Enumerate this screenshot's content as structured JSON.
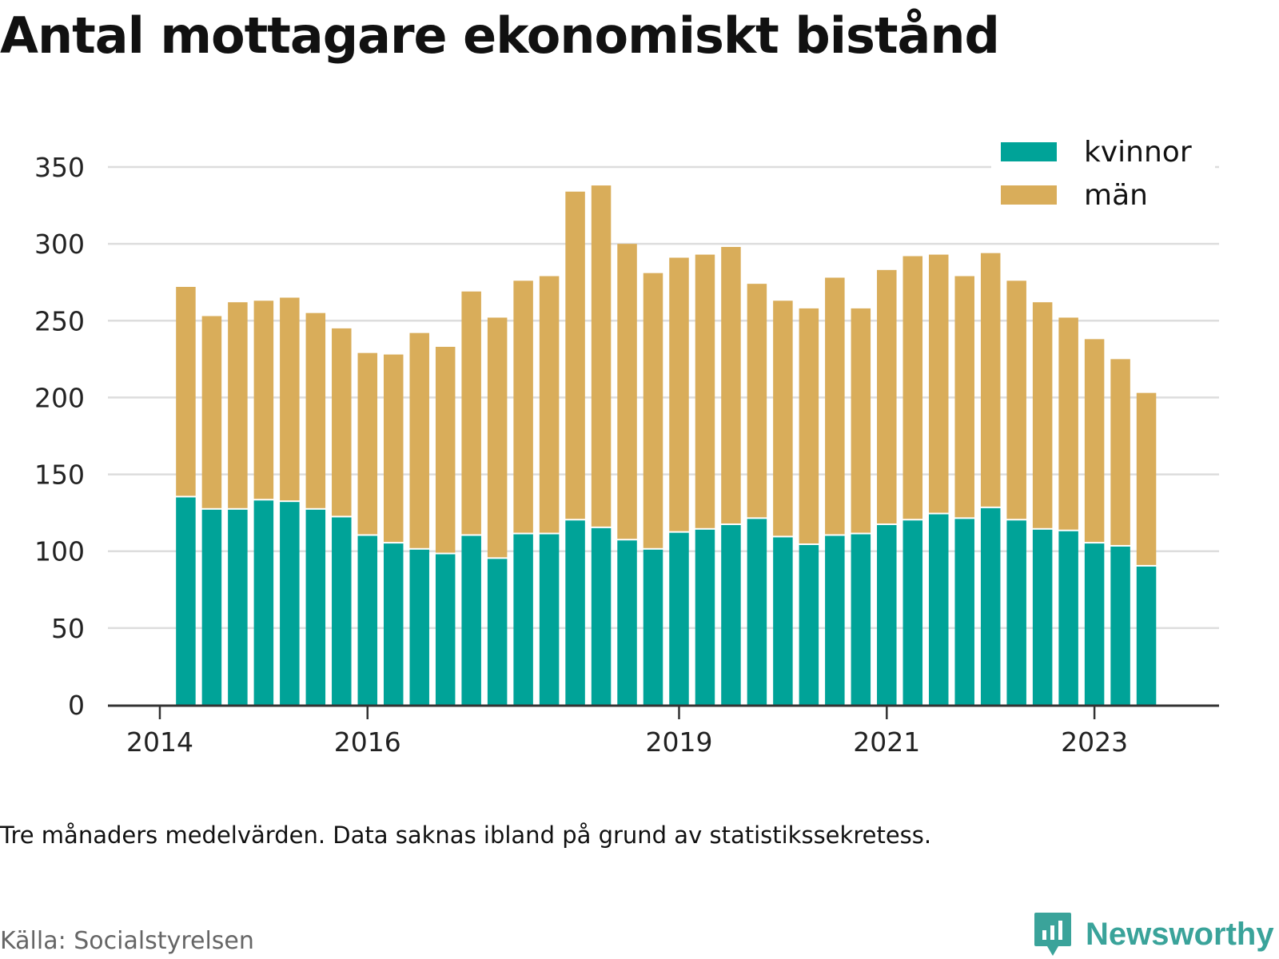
{
  "title": "Antal mottagare ekonomiskt bistånd",
  "note": "Tre månaders medelvärden. Data saknas ibland på grund av statistikssekretess.",
  "source": "Källa: Socialstyrelsen",
  "brand": {
    "name": "Newsworthy",
    "icon": "newsworthy-logo-icon",
    "color": "#3aa39a"
  },
  "chart_data": {
    "type": "bar",
    "stacked": true,
    "grid": true,
    "legend_position": "top-right",
    "ylim": [
      0,
      350
    ],
    "yticks": [
      0,
      50,
      100,
      150,
      200,
      250,
      300,
      350
    ],
    "xticks": [
      {
        "label": "2014",
        "at": 2014.0
      },
      {
        "label": "2016",
        "at": 2016.0
      },
      {
        "label": "2019",
        "at": 2019.0
      },
      {
        "label": "2021",
        "at": 2021.0
      },
      {
        "label": "2023",
        "at": 2023.0
      }
    ],
    "xlim": [
      2013.5,
      2024.2
    ],
    "x": [
      2014.25,
      2014.5,
      2014.75,
      2015.0,
      2015.25,
      2015.5,
      2015.75,
      2016.0,
      2016.25,
      2016.5,
      2016.75,
      2017.0,
      2017.25,
      2017.5,
      2017.75,
      2018.0,
      2018.25,
      2018.5,
      2018.75,
      2019.0,
      2019.25,
      2019.5,
      2019.75,
      2020.0,
      2020.25,
      2020.5,
      2020.75,
      2021.0,
      2021.25,
      2021.5,
      2021.75,
      2022.0,
      2022.25,
      2022.5,
      2022.75,
      2023.0,
      2023.25,
      2023.5
    ],
    "series": [
      {
        "name": "kvinnor",
        "color": "#00a398",
        "values": [
          135,
          127,
          127,
          133,
          132,
          127,
          122,
          110,
          105,
          101,
          98,
          110,
          95,
          111,
          111,
          120,
          115,
          107,
          101,
          112,
          114,
          117,
          121,
          109,
          104,
          110,
          111,
          117,
          120,
          124,
          121,
          128,
          120,
          114,
          113,
          105,
          103,
          90
        ]
      },
      {
        "name": "män",
        "color": "#d9ad5a",
        "values": [
          137,
          126,
          135,
          130,
          133,
          128,
          123,
          119,
          123,
          141,
          135,
          159,
          157,
          165,
          168,
          214,
          223,
          193,
          180,
          179,
          179,
          181,
          153,
          154,
          154,
          168,
          147,
          166,
          172,
          169,
          158,
          166,
          156,
          148,
          139,
          133,
          122,
          113
        ]
      }
    ]
  }
}
